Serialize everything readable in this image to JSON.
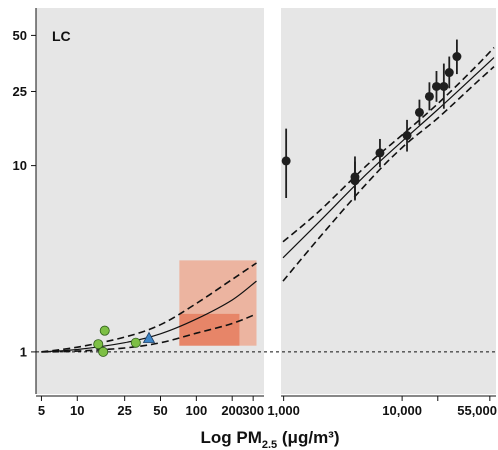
{
  "chart_data": {
    "type": "scatter",
    "panel_label": "LC",
    "xlabel": {
      "main": "Log PM",
      "sub": "2.5",
      "unit": " (μg/m³)"
    },
    "y_scale": "log",
    "ylim": [
      0.78,
      62
    ],
    "y_ticks": [
      1,
      10,
      25,
      50
    ],
    "y_tick_labels": [
      "1",
      "10",
      "25",
      "50"
    ],
    "reference_line": 1,
    "left_panel": {
      "x_scale": "log",
      "xlim": [
        4.5,
        370
      ],
      "x_ticks": [
        5,
        10,
        25,
        50,
        100,
        200,
        300
      ],
      "x_tick_labels": [
        "5",
        "10",
        "25",
        "50",
        "100",
        "200",
        "300"
      ],
      "shaded_regions": [
        {
          "x": [
            72,
            320
          ],
          "y": [
            1.08,
            3.1
          ],
          "color": "#ee9e82",
          "opacity": 0.7
        },
        {
          "x": [
            72,
            230
          ],
          "y": [
            1.08,
            1.6
          ],
          "color": "#e57050",
          "opacity": 0.7
        }
      ],
      "curve": {
        "x": [
          5,
          10,
          25,
          50,
          100,
          200,
          320
        ],
        "center": [
          1.0,
          1.03,
          1.12,
          1.25,
          1.5,
          1.9,
          2.4
        ],
        "upper": [
          1.0,
          1.06,
          1.2,
          1.4,
          1.82,
          2.45,
          3.0
        ],
        "lower": [
          1.0,
          1.01,
          1.05,
          1.12,
          1.26,
          1.42,
          1.6
        ]
      },
      "points": [
        {
          "x": 15,
          "y": 1.1,
          "shape": "circle",
          "color": "#7dbf45"
        },
        {
          "x": 16.5,
          "y": 1.0,
          "shape": "circle",
          "color": "#7dbf45"
        },
        {
          "x": 17,
          "y": 1.3,
          "shape": "circle",
          "color": "#7dbf45"
        },
        {
          "x": 31,
          "y": 1.12,
          "shape": "circle",
          "color": "#7dbf45"
        },
        {
          "x": 40,
          "y": 1.18,
          "shape": "triangle",
          "color": "#3d85c6"
        }
      ]
    },
    "right_panel": {
      "x_scale": "log",
      "xlim": [
        950,
        62000
      ],
      "x_ticks": [
        1000,
        10000,
        20000,
        55000
      ],
      "x_tick_labels": [
        "1,000",
        "10,000",
        "",
        "55,000"
      ],
      "curve": {
        "x": [
          950,
          2000,
          5000,
          10000,
          20000,
          40000,
          62000
        ],
        "center": [
          3.2,
          5.0,
          9.0,
          13.5,
          20.0,
          30.0,
          38.0
        ],
        "upper": [
          3.9,
          5.7,
          10.0,
          14.6,
          21.5,
          33.0,
          43.0
        ],
        "lower": [
          2.4,
          4.1,
          8.0,
          12.5,
          18.0,
          27.0,
          34.0
        ]
      },
      "points": [
        {
          "x": 1050,
          "y": 10.6,
          "lo": 6.7,
          "hi": 15.8
        },
        {
          "x": 4000,
          "y": 8.7,
          "lo": 6.6,
          "hi": 11.2
        },
        {
          "x": 4000,
          "y": 8.3,
          "lo": 6.5,
          "hi": 10.5
        },
        {
          "x": 6500,
          "y": 11.7,
          "lo": 9.8,
          "hi": 13.9
        },
        {
          "x": 11000,
          "y": 14.5,
          "lo": 11.9,
          "hi": 17.6
        },
        {
          "x": 14000,
          "y": 19.3,
          "lo": 16.5,
          "hi": 22.6
        },
        {
          "x": 17000,
          "y": 23.5,
          "lo": 19.8,
          "hi": 28.0
        },
        {
          "x": 19500,
          "y": 26.6,
          "lo": 22.0,
          "hi": 32.2
        },
        {
          "x": 22500,
          "y": 26.6,
          "lo": 20.2,
          "hi": 35.3
        },
        {
          "x": 25000,
          "y": 31.6,
          "lo": 26.0,
          "hi": 38.5
        },
        {
          "x": 29000,
          "y": 38.5,
          "lo": 31.0,
          "hi": 47.5
        }
      ]
    },
    "colors": {
      "panel_bg": "#e6e6e6",
      "line": "#111111",
      "point_dark": "#1f1f1f"
    }
  }
}
